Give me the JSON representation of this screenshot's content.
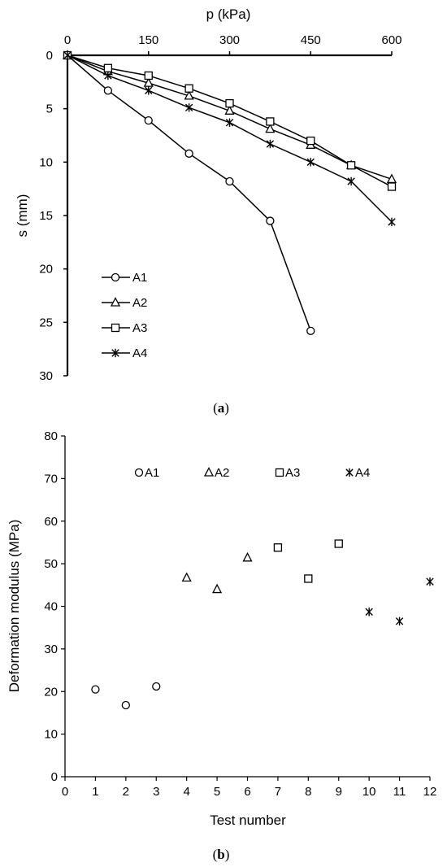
{
  "chart_data": [
    {
      "type": "line",
      "caption_prefix": "(",
      "caption_letter": "a",
      "caption_suffix": ")",
      "xlabel": "p (kPa)",
      "ylabel": "s (mm)",
      "xlim": [
        0,
        600
      ],
      "ylim": [
        0,
        30
      ],
      "y_inverted": true,
      "x_axis_position": "top",
      "xticks": [
        0,
        150,
        300,
        450,
        600
      ],
      "yticks": [
        0,
        5,
        10,
        15,
        20,
        25,
        30
      ],
      "grid": false,
      "legend_position": "bottom-left",
      "series": [
        {
          "name": "A1",
          "marker": "circle",
          "x": [
            0,
            75,
            150,
            225,
            300,
            375,
            450
          ],
          "y": [
            0,
            3.3,
            6.1,
            9.2,
            11.8,
            15.5,
            25.8
          ]
        },
        {
          "name": "A2",
          "marker": "triangle",
          "x": [
            0,
            75,
            150,
            225,
            300,
            375,
            450,
            525,
            600
          ],
          "y": [
            0,
            1.5,
            2.6,
            3.8,
            5.2,
            6.9,
            8.4,
            10.3,
            11.6
          ]
        },
        {
          "name": "A3",
          "marker": "square",
          "x": [
            0,
            75,
            150,
            225,
            300,
            375,
            450,
            525,
            600
          ],
          "y": [
            0,
            1.2,
            1.9,
            3.1,
            4.5,
            6.2,
            8.0,
            10.3,
            12.3
          ]
        },
        {
          "name": "A4",
          "marker": "asterisk",
          "x": [
            0,
            75,
            150,
            225,
            300,
            375,
            450,
            525,
            600
          ],
          "y": [
            0,
            1.9,
            3.3,
            4.9,
            6.3,
            8.3,
            10.0,
            11.8,
            15.6
          ]
        }
      ]
    },
    {
      "type": "scatter",
      "caption_prefix": "(",
      "caption_letter": "b",
      "caption_suffix": ")",
      "xlabel": "Test number",
      "ylabel": "Deformation modulus (MPa)",
      "xlim": [
        0,
        12
      ],
      "ylim": [
        0,
        80
      ],
      "xticks": [
        0,
        1,
        2,
        3,
        4,
        5,
        6,
        7,
        8,
        9,
        10,
        11,
        12
      ],
      "yticks": [
        0,
        10,
        20,
        30,
        40,
        50,
        60,
        70,
        80
      ],
      "grid": false,
      "legend_position": "top",
      "series": [
        {
          "name": "A1",
          "marker": "circle",
          "x": [
            1,
            2,
            3
          ],
          "y": [
            20.5,
            16.8,
            21.2
          ]
        },
        {
          "name": "A2",
          "marker": "triangle",
          "x": [
            4,
            5,
            6
          ],
          "y": [
            46.7,
            44.0,
            51.4
          ]
        },
        {
          "name": "A3",
          "marker": "square",
          "x": [
            7,
            8,
            9
          ],
          "y": [
            53.8,
            46.5,
            54.7
          ]
        },
        {
          "name": "A4",
          "marker": "asterisk",
          "x": [
            10,
            11,
            12
          ],
          "y": [
            38.7,
            36.5,
            45.8
          ]
        }
      ]
    }
  ]
}
